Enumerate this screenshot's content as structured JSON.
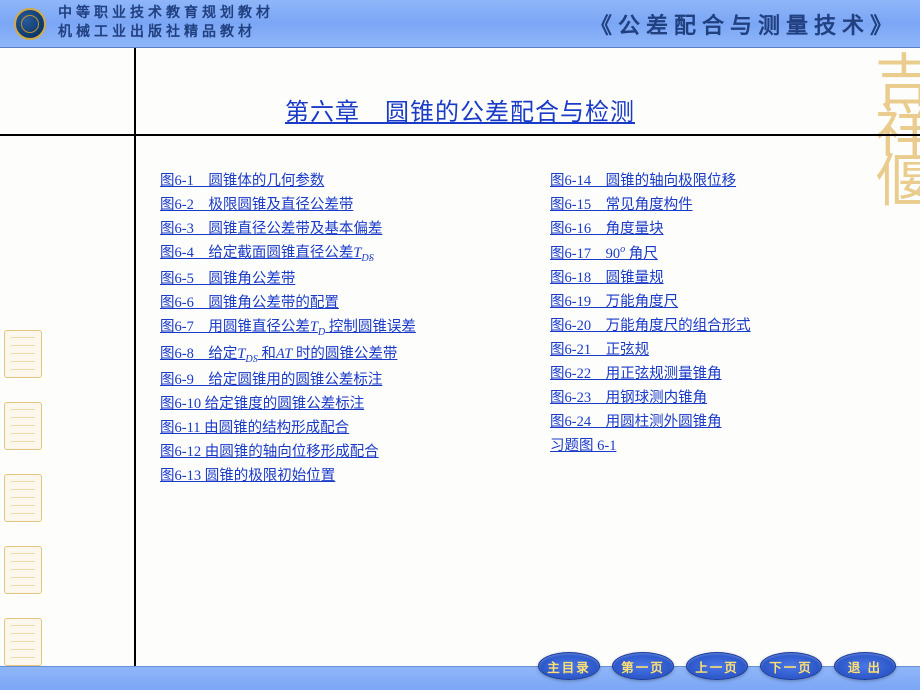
{
  "header": {
    "line1": "中等职业技术教育规划教材",
    "line2": "机械工业出版社精品教材",
    "right": "《公差配合与测量技术》"
  },
  "title": "第六章　圆锥的公差配合与检测",
  "left_items": [
    {
      "id": "6-1",
      "label": "图6-1　圆锥体的几何参数"
    },
    {
      "id": "6-2",
      "label": "图6-2　极限圆锥及直径公差带"
    },
    {
      "id": "6-3",
      "label": "图6-3　圆锥直径公差带及基本偏差"
    },
    {
      "id": "6-4",
      "label": "图6-4　给定截面圆锥直径公差T_DS",
      "html": "图6-4　给定截面圆锥直径公差<i>T</i><sub>DS</sub>"
    },
    {
      "id": "6-5",
      "label": "图6-5　圆锥角公差带"
    },
    {
      "id": "6-6",
      "label": "图6-6　圆锥角公差带的配置"
    },
    {
      "id": "6-7",
      "label": "图6-7　用圆锥直径公差T_D控制圆锥误差",
      "html": "图6-7　用圆锥直径公差<i>T</i><sub>D</sub> 控制圆锥误差"
    },
    {
      "id": "6-8",
      "label": "图6-8　给定T_DS 和AT 时的圆锥公差带",
      "html": "图6-8　给定<i>T</i><sub>DS</sub> 和<i>AT</i> 时的圆锥公差带"
    },
    {
      "id": "6-9",
      "label": "图6-9　给定圆锥用的圆锥公差标注"
    },
    {
      "id": "6-10",
      "label": "图6-10  给定锥度的圆锥公差标注"
    },
    {
      "id": "6-11",
      "label": "图6-11  由圆锥的结构形成配合"
    },
    {
      "id": "6-12",
      "label": "图6-12  由圆锥的轴向位移形成配合"
    },
    {
      "id": "6-13",
      "label": "图6-13  圆锥的极限初始位置"
    }
  ],
  "right_items": [
    {
      "id": "6-14",
      "label": "图6-14　圆锥的轴向极限位移"
    },
    {
      "id": "6-15",
      "label": "图6-15　常见角度构件"
    },
    {
      "id": "6-16",
      "label": "图6-16　角度量块"
    },
    {
      "id": "6-17",
      "label": "图6-17　90°角尺",
      "html": "图6-17　90<sup>o</sup> 角尺"
    },
    {
      "id": "6-18",
      "label": "图6-18　圆锥量规"
    },
    {
      "id": "6-19",
      "label": "图6-19　万能角度尺"
    },
    {
      "id": "6-20",
      "label": "图6-20　万能角度尺的组合形式"
    },
    {
      "id": "6-21",
      "label": "图6-21　正弦规"
    },
    {
      "id": "6-22",
      "label": "图6-22　用正弦规测量锥角"
    },
    {
      "id": "6-23",
      "label": "图6-23　用钢球测内锥角"
    },
    {
      "id": "6-24",
      "label": "图6-24　用圆柱测外圆锥角"
    },
    {
      "id": "ex6-1",
      "label": "习题图 6-1"
    }
  ],
  "nav": {
    "toc": "主目录",
    "first": "第一页",
    "prev": "上一页",
    "next": "下一页",
    "exit": "退 出"
  },
  "watermark_right": "吉祥偃",
  "colors": {
    "link": "#1a3ac8",
    "header_bg": "#8fb6f9",
    "button_bg": "#2a56c8",
    "button_text": "#ffe070",
    "watermark": "#e4bd6a"
  }
}
